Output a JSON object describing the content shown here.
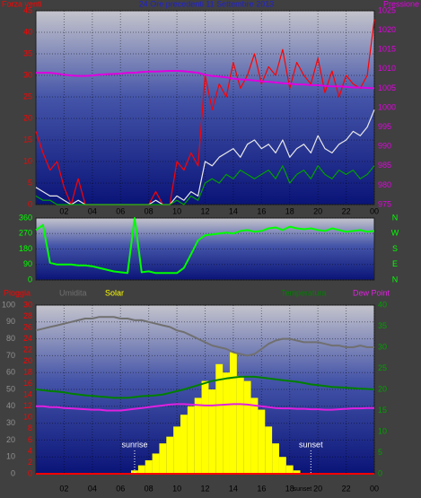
{
  "chart_data": [
    {
      "type": "line",
      "title": "24 Ore precedenti 11 Settembre 2013",
      "ylabel": "Forza venti",
      "y2label": "Pressione",
      "ycolor": "#ff0000",
      "y2color": "#e000e0",
      "titlecolor": "#2020d0",
      "x": [
        0,
        0.5,
        1,
        1.5,
        2,
        2.5,
        3,
        3.5,
        4,
        4.5,
        5,
        5.5,
        6,
        6.5,
        7,
        7.5,
        8,
        8.5,
        9,
        9.5,
        10,
        10.5,
        11,
        11.5,
        12,
        12.5,
        13,
        13.5,
        14,
        14.5,
        15,
        15.5,
        16,
        16.5,
        17,
        17.5,
        18,
        18.5,
        19,
        19.5,
        20,
        20.5,
        21,
        21.5,
        22,
        22.5,
        23,
        23.5,
        24
      ],
      "xlim": [
        0,
        24
      ],
      "xticks": [
        {
          "value": 2,
          "label": "02"
        },
        {
          "value": 4,
          "label": "04"
        },
        {
          "value": 6,
          "label": "06"
        },
        {
          "value": 8,
          "label": "08"
        },
        10,
        12,
        14,
        16,
        18,
        20,
        22,
        {
          "value": 24,
          "label": "00"
        }
      ],
      "ylim": [
        0,
        45
      ],
      "yticks": [
        0,
        5,
        10,
        15,
        20,
        25,
        30,
        35,
        40,
        45
      ],
      "y2lim": [
        975,
        1025
      ],
      "y2ticks": [
        975,
        980,
        985,
        990,
        995,
        1000,
        1005,
        1010,
        1015,
        1020,
        1025
      ],
      "grid": true,
      "series": [
        {
          "color": "#ff0000",
          "values": [
            17,
            12,
            8,
            10,
            4,
            0,
            6,
            0,
            0,
            0,
            0,
            0,
            0,
            0,
            0,
            0,
            0,
            3,
            0,
            0,
            10,
            8,
            12,
            9,
            30,
            22,
            28,
            25,
            33,
            27,
            30,
            35,
            28,
            32,
            30,
            36,
            27,
            33,
            30,
            28,
            34,
            26,
            31,
            25,
            30,
            28,
            27,
            30,
            43
          ]
        },
        {
          "color": "#e8e8e8",
          "values": [
            4,
            3,
            2,
            2,
            1,
            0,
            1,
            0,
            0,
            0,
            0,
            0,
            0,
            0,
            0,
            0,
            0,
            1,
            0,
            0,
            2,
            1,
            3,
            2,
            10,
            9,
            11,
            12,
            13,
            11,
            14,
            15,
            13,
            14,
            12,
            15,
            11,
            13,
            14,
            12,
            16,
            13,
            12,
            14,
            15,
            17,
            16,
            18,
            22
          ]
        },
        {
          "color": "#00a000",
          "values": [
            2,
            1,
            1,
            0,
            0,
            0,
            0,
            0,
            0,
            0,
            0,
            0,
            0,
            0,
            0,
            0,
            0,
            0,
            0,
            0,
            1,
            0,
            2,
            1,
            5,
            6,
            5,
            7,
            6,
            8,
            7,
            6,
            7,
            8,
            6,
            9,
            5,
            7,
            8,
            6,
            9,
            7,
            6,
            8,
            7,
            8,
            6,
            7,
            9
          ]
        },
        {
          "color": "#e000e0",
          "axis": "y2",
          "values": [
            1009,
            1009,
            1009,
            1008.8,
            1008.5,
            1008.3,
            1008.2,
            1008.2,
            1008.3,
            1008.5,
            1008.6,
            1008.7,
            1008.8,
            1009,
            1009,
            1009.2,
            1009.3,
            1009.3,
            1009.4,
            1009.5,
            1009.5,
            1009.4,
            1009.2,
            1009,
            1008.5,
            1008.2,
            1008,
            1007.8,
            1007.5,
            1007.3,
            1007.2,
            1007,
            1006.8,
            1006.7,
            1006.5,
            1006.3,
            1006.2,
            1006,
            1006,
            1005.8,
            1005.8,
            1005.6,
            1005.5,
            1005.5,
            1005.4,
            1005.2,
            1005.2,
            1005.1,
            1005
          ]
        }
      ]
    },
    {
      "type": "line",
      "ycolor": "#00ff00",
      "y2color": "#00ff00",
      "x": [
        0,
        0.5,
        1,
        1.5,
        2,
        2.5,
        3,
        3.5,
        4,
        4.5,
        5,
        5.5,
        6,
        6.5,
        7,
        7.5,
        8,
        8.5,
        9,
        9.5,
        10,
        10.5,
        11,
        11.5,
        12,
        12.5,
        13,
        13.5,
        14,
        14.5,
        15,
        15.5,
        16,
        16.5,
        17,
        17.5,
        18,
        18.5,
        19,
        19.5,
        20,
        20.5,
        21,
        21.5,
        22,
        22.5,
        23,
        23.5,
        24
      ],
      "xlim": [
        0,
        24
      ],
      "ylim": [
        0,
        360
      ],
      "yticks": [
        0,
        90,
        180,
        270,
        360
      ],
      "y2lim": [
        0,
        360
      ],
      "y2ticks": [
        {
          "value": 360,
          "label": "N"
        },
        {
          "value": 270,
          "label": "W"
        },
        {
          "value": 180,
          "label": "S"
        },
        {
          "value": 90,
          "label": "E"
        },
        {
          "value": 0,
          "label": "N"
        }
      ],
      "grid": true,
      "series": [
        {
          "color": "#00ff00",
          "values": [
            290,
            320,
            100,
            90,
            90,
            90,
            85,
            85,
            80,
            70,
            60,
            50,
            45,
            40,
            360,
            45,
            50,
            40,
            40,
            40,
            40,
            70,
            150,
            230,
            260,
            265,
            270,
            275,
            270,
            285,
            290,
            280,
            285,
            300,
            305,
            290,
            310,
            300,
            295,
            300,
            290,
            285,
            300,
            290,
            280,
            285,
            290,
            280,
            285
          ]
        }
      ]
    },
    {
      "type": "line",
      "ycolor": "#909090",
      "y2color": "#00a000",
      "y3color": "#ff0000",
      "x": [
        0,
        0.5,
        1,
        1.5,
        2,
        2.5,
        3,
        3.5,
        4,
        4.5,
        5,
        5.5,
        6,
        6.5,
        7,
        7.5,
        8,
        8.5,
        9,
        9.5,
        10,
        10.5,
        11,
        11.5,
        12,
        12.5,
        13,
        13.5,
        14,
        14.5,
        15,
        15.5,
        16,
        16.5,
        17,
        17.5,
        18,
        18.5,
        19,
        19.5,
        20,
        20.5,
        21,
        21.5,
        22,
        22.5,
        23,
        23.5,
        24
      ],
      "xlim": [
        0,
        24
      ],
      "xticks": [
        {
          "value": 2,
          "label": "02"
        },
        {
          "value": 4,
          "label": "04"
        },
        {
          "value": 6,
          "label": "06"
        },
        {
          "value": 8,
          "label": "08"
        },
        10,
        12,
        14,
        16,
        18,
        20,
        22,
        {
          "value": 24,
          "label": "00"
        }
      ],
      "ylim": [
        0,
        100
      ],
      "yticks": [
        0,
        10,
        20,
        30,
        40,
        50,
        60,
        70,
        80,
        90,
        100
      ],
      "y2lim": [
        0,
        40
      ],
      "y2ticks": [
        0,
        5,
        10,
        15,
        20,
        25,
        30,
        35,
        40
      ],
      "y3lim": [
        0,
        30
      ],
      "y3ticks": [
        0,
        2,
        4,
        6,
        8,
        10,
        12,
        14,
        16,
        18,
        20,
        22,
        24,
        26,
        28,
        30
      ],
      "grid": true,
      "annotations": [
        {
          "text": "sunrise",
          "x": 7
        },
        {
          "text": "sunset",
          "x": 19.5
        }
      ],
      "x_label_annotation": {
        "text": "sunset",
        "x": 18.9
      },
      "series": [
        {
          "name": "Pioggia",
          "color": "#ff0000",
          "axis": "y3",
          "values": [
            0,
            0,
            0,
            0,
            0,
            0,
            0,
            0,
            0,
            0,
            0,
            0,
            0,
            0,
            0,
            0,
            0,
            0,
            0,
            0,
            0,
            0,
            0,
            0,
            0,
            0,
            0,
            0,
            0,
            0,
            0,
            0,
            0,
            0,
            0,
            0,
            0,
            0,
            0,
            0,
            0,
            0,
            0,
            0,
            0,
            0,
            0,
            0,
            0
          ]
        },
        {
          "name": "Umidita",
          "color": "#707070",
          "values": [
            85,
            86,
            87,
            88,
            89,
            90,
            91,
            92,
            92,
            93,
            93,
            93,
            92,
            92,
            91,
            91,
            90,
            89,
            88,
            87,
            85,
            84,
            82,
            80,
            78,
            76,
            75,
            74,
            72,
            71,
            70,
            71,
            74,
            77,
            79,
            80,
            80,
            79,
            78,
            78,
            78,
            77,
            76,
            76,
            75,
            75,
            76,
            75,
            75
          ]
        },
        {
          "name": "Solar",
          "color": "#ffff00",
          "style": "bar",
          "values": [
            0,
            0,
            0,
            0,
            0,
            0,
            0,
            0,
            0,
            0,
            0,
            0,
            0,
            0,
            2,
            5,
            8,
            12,
            18,
            22,
            28,
            35,
            40,
            45,
            55,
            50,
            65,
            60,
            72,
            58,
            55,
            45,
            38,
            28,
            18,
            10,
            5,
            2,
            0,
            0,
            0,
            0,
            0,
            0,
            0,
            0,
            0,
            0,
            0
          ]
        },
        {
          "name": "Temperatura",
          "color": "#008000",
          "axis": "y2",
          "values": [
            20,
            19.8,
            19.6,
            19.5,
            19.3,
            19,
            18.8,
            18.6,
            18.5,
            18.3,
            18.2,
            18,
            18,
            18,
            18.2,
            18.4,
            18.5,
            18.6,
            18.8,
            19.2,
            19.6,
            20,
            20.5,
            21,
            21.5,
            22,
            22.3,
            22.6,
            22.8,
            23,
            23,
            23,
            22.8,
            22.6,
            22.4,
            22.2,
            22,
            21.8,
            21.5,
            21.2,
            21,
            20.8,
            20.6,
            20.5,
            20.4,
            20.3,
            20.2,
            20.1,
            20
          ]
        },
        {
          "name": "Dew Point",
          "color": "#e020e0",
          "axis": "y2",
          "values": [
            16,
            16,
            15.8,
            15.8,
            15.6,
            15.5,
            15.4,
            15.3,
            15.2,
            15.2,
            15,
            15,
            15,
            15.2,
            15.4,
            15.6,
            15.8,
            16,
            16.2,
            16.4,
            16.5,
            16.5,
            16.4,
            16.3,
            16.2,
            16.2,
            16.3,
            16.4,
            16.5,
            16.5,
            16.4,
            16.2,
            16,
            15.8,
            15.6,
            15.5,
            15.5,
            15.4,
            15.4,
            15.3,
            15.3,
            15.2,
            15.2,
            15.3,
            15.4,
            15.5,
            15.5,
            15.6,
            15.6
          ]
        }
      ]
    }
  ]
}
